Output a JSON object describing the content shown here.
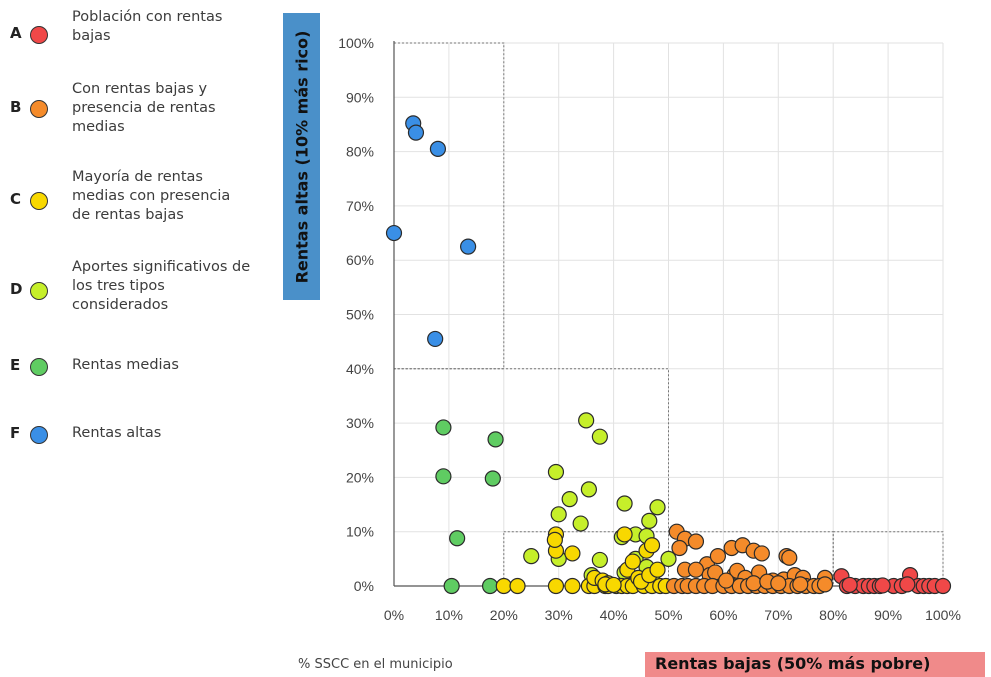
{
  "legend": [
    {
      "letter": "A",
      "label": "Población con rentas bajas",
      "color": "#f04848"
    },
    {
      "letter": "B",
      "label": "Con rentas bajas y presencia de rentas medias",
      "color": "#f58b2a"
    },
    {
      "letter": "C",
      "label": "Mayoría de rentas medias con presencia de rentas bajas",
      "color": "#f8d800"
    },
    {
      "letter": "D",
      "label": "Aportes significativos de los tres tipos considerados",
      "color": "#c6ef2a"
    },
    {
      "letter": "E",
      "label": "Rentas medias",
      "color": "#5fcc62"
    },
    {
      "letter": "F",
      "label": "Rentas altas",
      "color": "#3a8fe6"
    }
  ],
  "chart_data": {
    "type": "scatter",
    "ylabel": "Rentas altas (10% más rico)",
    "xlabel": "Rentas bajas (50% más pobre)",
    "note": "% SSCC en el municipio",
    "xlim": [
      0,
      100
    ],
    "ylim": [
      0,
      100
    ],
    "xticks": [
      "0%",
      "10%",
      "20%",
      "30%",
      "40%",
      "50%",
      "60%",
      "70%",
      "80%",
      "90%",
      "100%"
    ],
    "yticks": [
      "0%",
      "10%",
      "20%",
      "30%",
      "40%",
      "50%",
      "60%",
      "70%",
      "80%",
      "90%",
      "100%"
    ],
    "grid": true,
    "regions": [
      {
        "x": [
          0,
          20
        ],
        "y": [
          40,
          100
        ]
      },
      {
        "x": [
          0,
          50
        ],
        "y": [
          0,
          40
        ]
      },
      {
        "x": [
          20,
          80
        ],
        "y": [
          0,
          10
        ]
      },
      {
        "x": [
          80,
          100
        ],
        "y": [
          0,
          10
        ]
      }
    ],
    "series": [
      {
        "group": "F",
        "color": "#3a8fe6",
        "points": [
          [
            0,
            65
          ],
          [
            3.5,
            85.2
          ],
          [
            4,
            83.5
          ],
          [
            8,
            80.5
          ],
          [
            13.5,
            62.5
          ],
          [
            7.5,
            45.5
          ]
        ]
      },
      {
        "group": "E",
        "color": "#5fcc62",
        "points": [
          [
            9,
            29.2
          ],
          [
            9,
            20.2
          ],
          [
            11.5,
            8.8
          ],
          [
            18.5,
            27
          ],
          [
            18,
            19.8
          ],
          [
            10.5,
            0
          ],
          [
            17.5,
            0
          ]
        ]
      },
      {
        "group": "D",
        "color": "#c6ef2a",
        "points": [
          [
            35,
            30.5
          ],
          [
            37.5,
            27.5
          ],
          [
            29.5,
            21
          ],
          [
            35.5,
            17.8
          ],
          [
            32,
            16
          ],
          [
            30,
            13.2
          ],
          [
            34,
            11.5
          ],
          [
            42,
            15.2
          ],
          [
            48,
            14.5
          ],
          [
            46.5,
            12
          ],
          [
            25,
            5.5
          ],
          [
            30,
            5
          ],
          [
            37.5,
            4.8
          ],
          [
            41.5,
            9
          ],
          [
            44,
            9.5
          ],
          [
            46,
            9.2
          ],
          [
            50,
            5
          ],
          [
            44,
            5
          ],
          [
            46,
            3.5
          ],
          [
            36,
            2
          ],
          [
            42,
            2.5
          ],
          [
            47,
            1.8
          ]
        ]
      },
      {
        "group": "C",
        "color": "#f8d800",
        "points": [
          [
            20,
            0
          ],
          [
            22.5,
            0
          ],
          [
            29.5,
            0
          ],
          [
            32.5,
            0
          ],
          [
            35.5,
            0
          ],
          [
            36.5,
            0
          ],
          [
            38.5,
            0
          ],
          [
            39,
            0
          ],
          [
            40.5,
            0
          ],
          [
            41.5,
            0
          ],
          [
            42.5,
            0
          ],
          [
            43.5,
            0
          ],
          [
            45.5,
            0
          ],
          [
            47,
            0
          ],
          [
            48.5,
            0
          ],
          [
            49.5,
            0
          ],
          [
            29.5,
            9.5
          ],
          [
            29.5,
            6.5
          ],
          [
            29.3,
            8.5
          ],
          [
            32.5,
            6
          ],
          [
            36.5,
            1.5
          ],
          [
            38,
            1
          ],
          [
            39,
            0.5
          ],
          [
            42.5,
            3
          ],
          [
            43.5,
            4.5
          ],
          [
            44.5,
            1.5
          ],
          [
            45,
            0.8
          ],
          [
            46.5,
            2
          ],
          [
            46,
            6.5
          ],
          [
            47,
            7.5
          ],
          [
            48,
            3
          ],
          [
            42,
            9.5
          ],
          [
            38.5,
            0.3
          ],
          [
            40,
            0.2
          ]
        ]
      },
      {
        "group": "B",
        "color": "#f58b2a",
        "points": [
          [
            51.5,
            10
          ],
          [
            53,
            8.7
          ],
          [
            55,
            8.2
          ],
          [
            52,
            7
          ],
          [
            57,
            4
          ],
          [
            59,
            5.5
          ],
          [
            61.5,
            7
          ],
          [
            63.5,
            7.5
          ],
          [
            65.5,
            6.5
          ],
          [
            67,
            6
          ],
          [
            71.5,
            5.5
          ],
          [
            72,
            5.2
          ],
          [
            53,
            3
          ],
          [
            55,
            3
          ],
          [
            57.5,
            2
          ],
          [
            58.5,
            2.5
          ],
          [
            62,
            2
          ],
          [
            62.5,
            2.8
          ],
          [
            64,
            1.5
          ],
          [
            66.5,
            2.5
          ],
          [
            69,
            1
          ],
          [
            71,
            1.2
          ],
          [
            73,
            2
          ],
          [
            74.5,
            1.5
          ],
          [
            78.5,
            1.5
          ],
          [
            51,
            0
          ],
          [
            52.5,
            0
          ],
          [
            53.5,
            0
          ],
          [
            55,
            0
          ],
          [
            56.5,
            0
          ],
          [
            58,
            0
          ],
          [
            60,
            0
          ],
          [
            61.5,
            0
          ],
          [
            63,
            0
          ],
          [
            64.5,
            0
          ],
          [
            66,
            0
          ],
          [
            67.5,
            0
          ],
          [
            69,
            0
          ],
          [
            70.5,
            0
          ],
          [
            72,
            0
          ],
          [
            73.5,
            0
          ],
          [
            75,
            0
          ],
          [
            76.5,
            0
          ],
          [
            77.5,
            0
          ],
          [
            78.5,
            0.3
          ],
          [
            60.5,
            1
          ],
          [
            65.5,
            0.5
          ],
          [
            68,
            0.8
          ],
          [
            70,
            0.5
          ],
          [
            74,
            0.3
          ]
        ]
      },
      {
        "group": "A",
        "color": "#f04848",
        "points": [
          [
            81.5,
            1.8
          ],
          [
            82.5,
            0
          ],
          [
            84,
            0
          ],
          [
            85.5,
            0
          ],
          [
            86.5,
            0
          ],
          [
            87.5,
            0
          ],
          [
            88.5,
            0
          ],
          [
            91,
            0
          ],
          [
            92.5,
            0
          ],
          [
            94,
            2
          ],
          [
            95.5,
            0
          ],
          [
            96.5,
            0
          ],
          [
            97.5,
            0
          ],
          [
            98.5,
            0
          ],
          [
            100,
            0
          ],
          [
            83,
            0.2
          ],
          [
            89,
            0.1
          ],
          [
            93.5,
            0.3
          ]
        ]
      }
    ]
  }
}
